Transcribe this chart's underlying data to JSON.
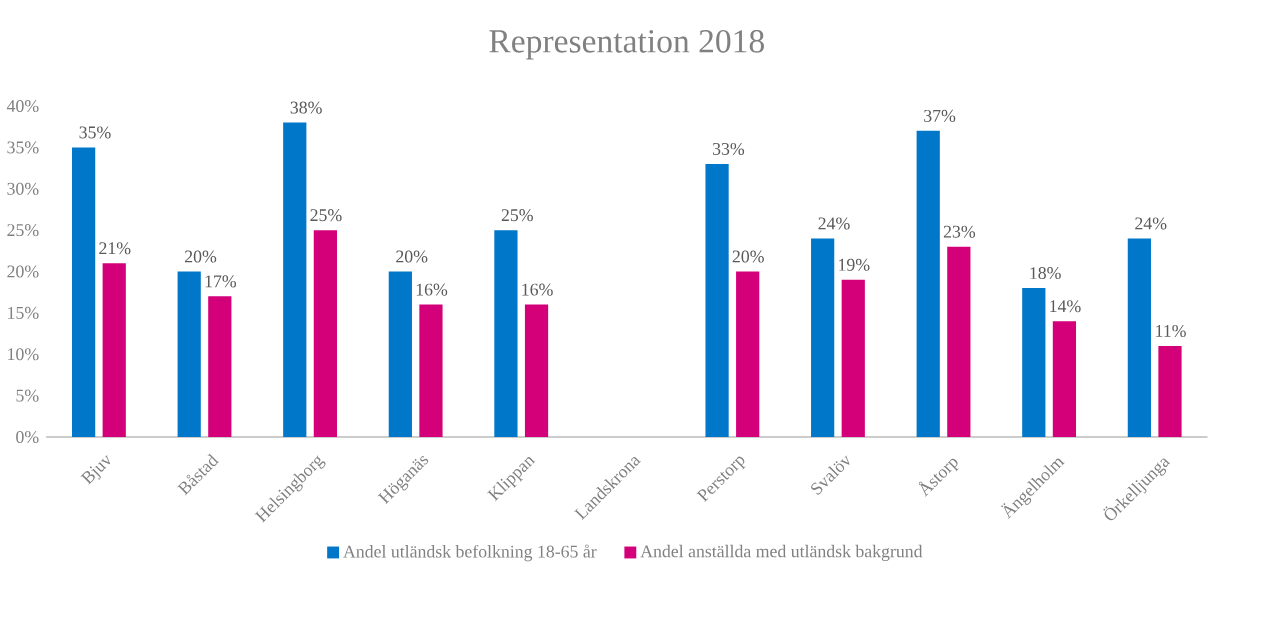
{
  "chart_data": {
    "type": "bar",
    "title": "Representation 2018",
    "categories": [
      "Bjuv",
      "Båstad",
      "Helsingborg",
      "Höganäs",
      "Klippan",
      "Landskrona",
      "Perstorp",
      "Svalöv",
      "Åstorp",
      "Ängelholm",
      "Örkelljunga"
    ],
    "series": [
      {
        "name": "Andel utländsk befolkning 18-65 år",
        "color": "#0077c8",
        "values": [
          35,
          20,
          38,
          20,
          25,
          null,
          33,
          24,
          37,
          18,
          24
        ],
        "value_labels": [
          "35%",
          "20%",
          "38%",
          "20%",
          "25%",
          null,
          "33%",
          "24%",
          "37%",
          "18%",
          "24%"
        ]
      },
      {
        "name": "Andel anställda med utländsk bakgrund",
        "color": "#d4007a",
        "values": [
          21,
          17,
          25,
          16,
          16,
          null,
          20,
          19,
          23,
          14,
          11
        ],
        "value_labels": [
          "21%",
          "17%",
          "25%",
          "16%",
          "16%",
          null,
          "20%",
          "19%",
          "23%",
          "14%",
          "11%"
        ]
      }
    ],
    "ylim": [
      0,
      40
    ],
    "yticks": [
      {
        "value": 0,
        "label": "0%"
      },
      {
        "value": 5,
        "label": "5%"
      },
      {
        "value": 10,
        "label": "10%"
      },
      {
        "value": 15,
        "label": "15%"
      },
      {
        "value": 20,
        "label": "20%"
      },
      {
        "value": 25,
        "label": "25%"
      },
      {
        "value": 30,
        "label": "30%"
      },
      {
        "value": 35,
        "label": "35%"
      },
      {
        "value": 40,
        "label": "40%"
      }
    ],
    "legend": "bottom"
  }
}
